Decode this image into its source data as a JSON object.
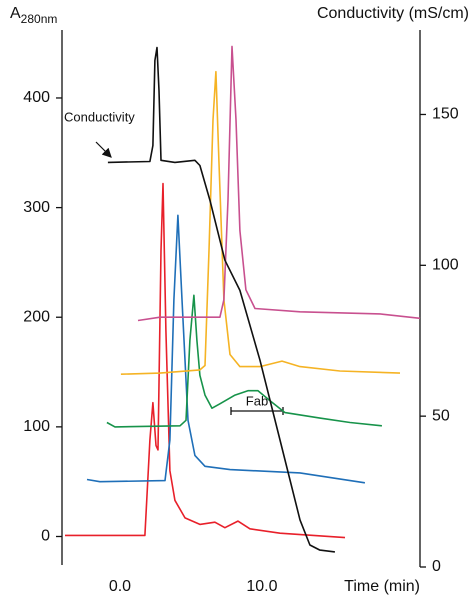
{
  "chart_data": {
    "type": "line",
    "ylabel": {
      "main": "A",
      "sub": "280nm"
    },
    "y2label": "Conductivity (mS/cm)",
    "xlabel": "Time (min)",
    "xlim": [
      -4.08,
      21.13
    ],
    "xticks": [
      {
        "value": 0,
        "label": "0.0"
      },
      {
        "value": 10,
        "label": "10.0"
      }
    ],
    "ylim": [
      -26,
      462
    ],
    "yticks": [
      0,
      100,
      200,
      300,
      400
    ],
    "y2lim": [
      0,
      178
    ],
    "y2ticks": [
      0,
      50,
      100,
      150
    ],
    "annotations": [
      "Conductivity",
      "Fab"
    ],
    "series": [
      {
        "color": "#e8202a",
        "x": [
          -3.87,
          1.76,
          2.11,
          2.32,
          2.54,
          2.68,
          2.89,
          3.03,
          3.24,
          3.52,
          3.87,
          4.58,
          5.63,
          6.69,
          7.39,
          8.31,
          9.15,
          11.27,
          15.85
        ],
        "values": [
          1,
          1,
          88,
          122,
          83,
          79,
          261,
          322,
          188,
          60,
          33,
          17,
          11,
          13,
          8,
          14,
          7,
          3,
          -1
        ]
      },
      {
        "color": "#1f6fb8",
        "x": [
          -2.32,
          -1.41,
          3.17,
          3.52,
          3.8,
          4.08,
          4.37,
          4.79,
          5.28,
          5.99,
          7.75,
          12.68,
          17.25
        ],
        "values": [
          52,
          50,
          51,
          88,
          216,
          293,
          216,
          106,
          74,
          64,
          61,
          58,
          49
        ]
      },
      {
        "color": "#17934a",
        "x": [
          -0.92,
          -0.35,
          4.23,
          4.65,
          4.93,
          5.21,
          5.42,
          5.63,
          5.99,
          6.48,
          7.04,
          8.1,
          9.01,
          9.72,
          10.56,
          11.62,
          14.08,
          16.2,
          18.45
        ],
        "values": [
          104,
          100,
          101,
          106,
          179,
          220,
          179,
          147,
          129,
          117,
          121,
          129,
          133,
          133,
          124,
          113,
          108,
          104,
          101
        ]
      },
      {
        "color": "#f5b324",
        "x": [
          0.07,
          2.82,
          5.63,
          5.99,
          6.27,
          6.55,
          6.76,
          6.97,
          7.32,
          7.75,
          8.45,
          9.86,
          11.41,
          12.68,
          15.49,
          19.72
        ],
        "values": [
          148,
          149,
          152,
          156,
          261,
          380,
          424,
          343,
          216,
          166,
          155,
          155,
          160,
          155,
          151,
          149
        ]
      },
      {
        "color": "#c8508f",
        "x": [
          1.27,
          2.82,
          7.04,
          7.32,
          7.61,
          7.89,
          8.17,
          8.45,
          8.87,
          9.51,
          12.68,
          18.31,
          21.13
        ],
        "values": [
          197,
          200,
          200,
          216,
          307,
          447,
          380,
          279,
          225,
          208,
          205,
          203,
          199
        ]
      },
      {
        "color": "#111111",
        "axis": "y2",
        "x": [
          -0.85,
          2.11,
          2.32,
          2.46,
          2.61,
          2.75,
          2.89,
          3.87,
          5.28,
          5.63,
          6.34,
          7.39,
          8.45,
          9.86,
          11.27,
          12.68,
          13.38,
          14.08,
          15.14
        ],
        "values": [
          134.1,
          134.4,
          139.7,
          167.9,
          172.2,
          157.9,
          134.8,
          134.1,
          134.8,
          133.1,
          121.5,
          101.7,
          91.7,
          68.5,
          42.1,
          15.6,
          7.3,
          5.6,
          5.0
        ]
      }
    ]
  }
}
